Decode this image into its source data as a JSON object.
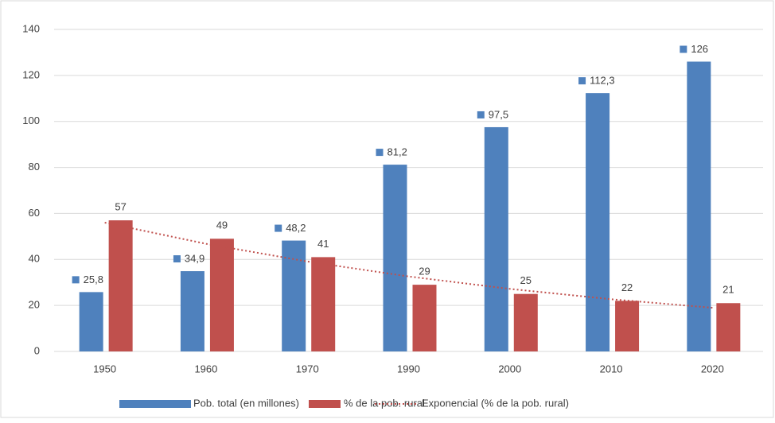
{
  "chart_data": {
    "type": "bar",
    "categories": [
      "1950",
      "1960",
      "1970",
      "1990",
      "2000",
      "2010",
      "2020"
    ],
    "series": [
      {
        "name": "Pob. total (en millones)",
        "color": "#4f81bd",
        "values": [
          25.8,
          34.9,
          48.2,
          81.2,
          97.5,
          112.3,
          126
        ],
        "value_labels": [
          "25,8",
          "34,9",
          "48,2",
          "81,2",
          "97,5",
          "112,3",
          "126"
        ]
      },
      {
        "name": "% de la pob. rural",
        "color": "#c0504d",
        "values": [
          57,
          49,
          41,
          29,
          25,
          22,
          21
        ]
      },
      {
        "name": "Exponencial (% de la pob. rural)",
        "color": "#c0504d",
        "type": "line",
        "line_style": "dotted",
        "values": [
          56,
          46.8,
          39.1,
          32.6,
          27.2,
          22.7,
          19
        ]
      }
    ],
    "ylim": [
      0,
      140
    ],
    "yticks": [
      0,
      20,
      40,
      60,
      80,
      100,
      120,
      140
    ],
    "grid": true,
    "legend": "bottom"
  }
}
